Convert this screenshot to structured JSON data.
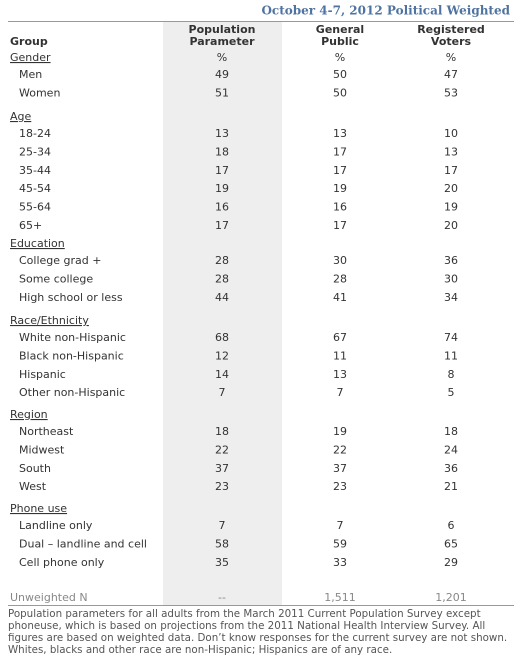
{
  "header": {
    "title": "October 4-7, 2012 Political Weighted"
  },
  "table": {
    "columns": [
      "Group",
      "Population Parameter",
      "General Public",
      "Registered Voters"
    ],
    "sections": [
      {
        "heading": "Gender",
        "units": [
          "%",
          "%",
          "%"
        ],
        "rows": [
          [
            "Men",
            "49",
            "50",
            "47"
          ],
          [
            "Women",
            "51",
            "50",
            "53"
          ]
        ]
      },
      {
        "heading": "Age",
        "rows": [
          [
            "18-24",
            "13",
            "13",
            "10"
          ],
          [
            "25-34",
            "18",
            "17",
            "13"
          ],
          [
            "35-44",
            "17",
            "17",
            "17"
          ],
          [
            "45-54",
            "19",
            "19",
            "20"
          ],
          [
            "55-64",
            "16",
            "16",
            "19"
          ],
          [
            "65+",
            "17",
            "17",
            "20"
          ]
        ]
      },
      {
        "heading": "Education",
        "rows": [
          [
            "College grad +",
            "28",
            "30",
            "36"
          ],
          [
            "Some college",
            "28",
            "28",
            "30"
          ],
          [
            "High school or less",
            "44",
            "41",
            "34"
          ]
        ]
      },
      {
        "heading": "Race/Ethnicity",
        "rows": [
          [
            "White non-Hispanic",
            "68",
            "67",
            "74"
          ],
          [
            "Black non-Hispanic",
            "12",
            "11",
            "11"
          ],
          [
            "Hispanic",
            "14",
            "13",
            "8"
          ],
          [
            "Other non-Hispanic",
            "7",
            "7",
            "5"
          ]
        ]
      },
      {
        "heading": "Region",
        "rows": [
          [
            "Northeast",
            "18",
            "19",
            "18"
          ],
          [
            "Midwest",
            "22",
            "22",
            "24"
          ],
          [
            "South",
            "37",
            "37",
            "36"
          ],
          [
            "West",
            "23",
            "23",
            "21"
          ]
        ]
      },
      {
        "heading": "Phone use",
        "rows": [
          [
            "Landline only",
            "7",
            "7",
            "6"
          ],
          [
            "Dual – landline and cell",
            "58",
            "59",
            "65"
          ],
          [
            "Cell phone only",
            "35",
            "33",
            "29"
          ]
        ]
      }
    ],
    "unweighted": [
      "Unweighted N",
      "--",
      "1,511",
      "1,201"
    ]
  },
  "footnote": "Population parameters for all adults from the March 2011 Current Population Survey except phoneuse, which is based on projections from the 2011 National Health Interview Survey. All figures are based on weighted data. Don’t know responses for the current survey are not shown. Whites, blacks and other race are non-Hispanic; Hispanics are of any race."
}
